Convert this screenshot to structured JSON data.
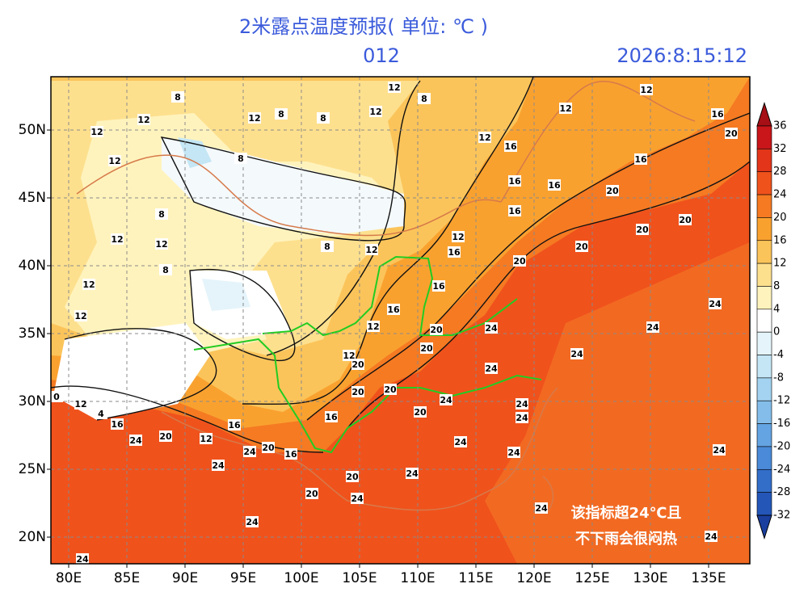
{
  "header": {
    "title": "2米露点温度预报( 单位: ℃ )",
    "forecast_hour": "012",
    "datetime": "2026:8:15:12"
  },
  "map": {
    "lat_labels": [
      "50N",
      "45N",
      "40N",
      "35N",
      "30N",
      "25N",
      "20N"
    ],
    "lon_labels": [
      "80E",
      "85E",
      "90E",
      "95E",
      "100E",
      "105E",
      "110E",
      "115E",
      "120E",
      "125E",
      "130E",
      "135E"
    ],
    "contour_labels": [
      12,
      8,
      12,
      12,
      12,
      16,
      20,
      12,
      8,
      8,
      12,
      12,
      8,
      12,
      16,
      16,
      16,
      16,
      20,
      20,
      20,
      16,
      20,
      20,
      12,
      16,
      16,
      16,
      12,
      8,
      12,
      8,
      12,
      12,
      12,
      20,
      20,
      24,
      24,
      24,
      24,
      24,
      20,
      12,
      20,
      20,
      24,
      20,
      16,
      24,
      24,
      24,
      24,
      24,
      20,
      24,
      20,
      16,
      20,
      24,
      24,
      16,
      12,
      20,
      24,
      16,
      12,
      0,
      4,
      24,
      24,
      24,
      24,
      24,
      8,
      12,
      12,
      8
    ]
  },
  "legend": {
    "ticks": [
      36,
      32,
      28,
      24,
      20,
      16,
      12,
      8,
      4,
      0,
      -4,
      -8,
      -12,
      -16,
      -20,
      -24,
      -28,
      -32
    ],
    "colors": [
      "#a50f15",
      "#c8161b",
      "#e2351a",
      "#f0521c",
      "#f57a22",
      "#f9a12f",
      "#fbc45a",
      "#fde08e",
      "#fff3bd",
      "#ffffff",
      "#e4f4fa",
      "#c4e6f5",
      "#a3d3f0",
      "#84bdea",
      "#64a4e2",
      "#4a8ad8",
      "#336ec9",
      "#2456b8",
      "#1a3f9e"
    ]
  },
  "annotation": {
    "lines": [
      "该指标超24℃且",
      "不下雨会很闷热"
    ]
  }
}
